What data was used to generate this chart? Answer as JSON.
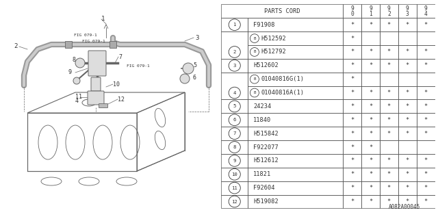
{
  "bg_color": "#ffffff",
  "line_color": "#666666",
  "text_color": "#333333",
  "footer_code": "A082A00045",
  "rows": [
    {
      "num": "1",
      "part": "F91908",
      "stars": [
        1,
        1,
        1,
        1,
        1
      ],
      "sub": false
    },
    {
      "num": "2",
      "part": "H512592",
      "stars": [
        1,
        0,
        0,
        0,
        0
      ],
      "sub": true,
      "sub_part": "H512792",
      "sub_stars": [
        1,
        1,
        1,
        1,
        1
      ]
    },
    {
      "num": "3",
      "part": "H512602",
      "stars": [
        1,
        1,
        1,
        1,
        1
      ],
      "sub": false
    },
    {
      "num": "4",
      "part": "01040816G(1)",
      "stars": [
        1,
        0,
        0,
        0,
        0
      ],
      "sub": true,
      "sub_part": "01040816A(1)",
      "sub_stars": [
        1,
        1,
        1,
        1,
        1
      ],
      "bolt": true
    },
    {
      "num": "5",
      "part": "24234",
      "stars": [
        1,
        1,
        1,
        1,
        1
      ],
      "sub": false
    },
    {
      "num": "6",
      "part": "11840",
      "stars": [
        1,
        1,
        1,
        1,
        1
      ],
      "sub": false
    },
    {
      "num": "7",
      "part": "H515842",
      "stars": [
        1,
        1,
        1,
        1,
        1
      ],
      "sub": false
    },
    {
      "num": "8",
      "part": "F922077",
      "stars": [
        1,
        1,
        0,
        0,
        0
      ],
      "sub": false
    },
    {
      "num": "9",
      "part": "H512612",
      "stars": [
        1,
        1,
        1,
        1,
        1
      ],
      "sub": false
    },
    {
      "num": "10",
      "part": "11821",
      "stars": [
        1,
        1,
        1,
        1,
        1
      ],
      "sub": false
    },
    {
      "num": "11",
      "part": "F92604",
      "stars": [
        1,
        1,
        1,
        1,
        1
      ],
      "sub": false
    },
    {
      "num": "12",
      "part": "H519082",
      "stars": [
        1,
        1,
        1,
        1,
        1
      ],
      "sub": false
    }
  ]
}
